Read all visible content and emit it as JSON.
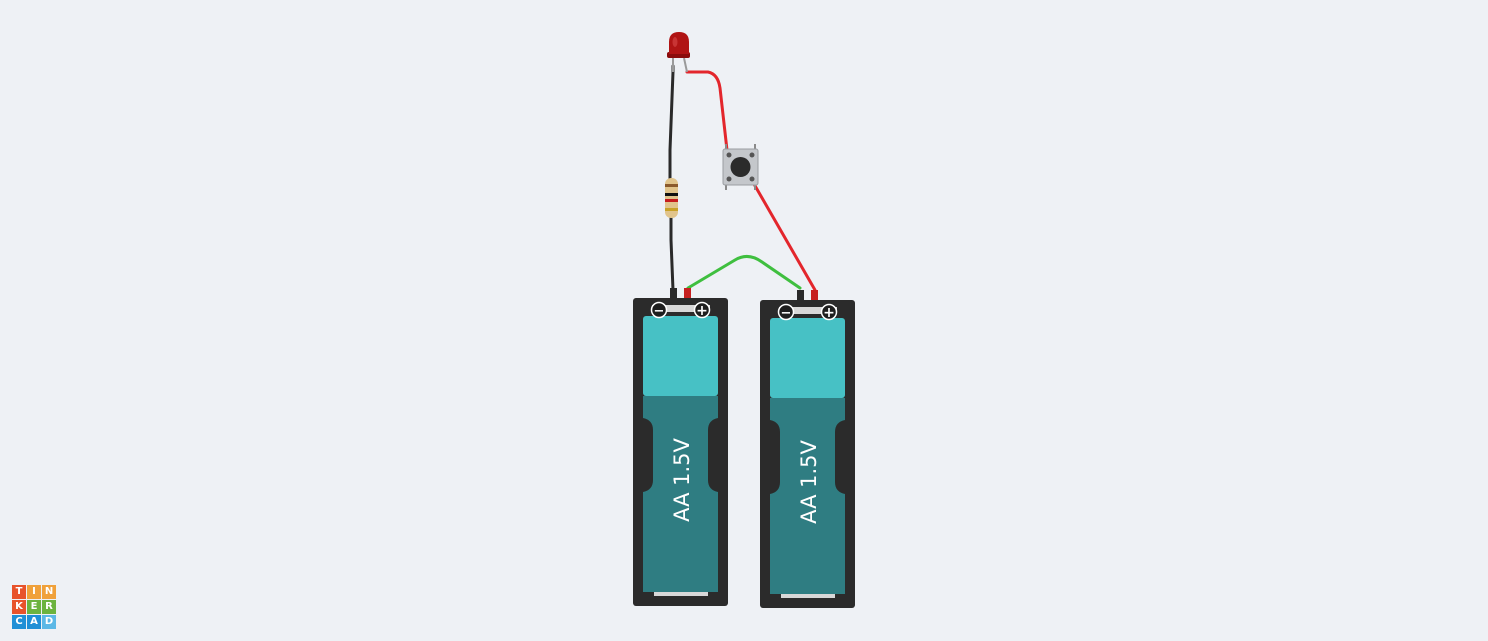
{
  "app": {
    "name": "TINKERCAD"
  },
  "logo": {
    "letters": [
      "T",
      "I",
      "N",
      "K",
      "E",
      "R",
      "C",
      "A",
      "D"
    ],
    "colors": [
      "#e8532b",
      "#f0a13a",
      "#f0a13a",
      "#e8532b",
      "#6cb33f",
      "#6cb33f",
      "#1f8fd6",
      "#1f8fd6",
      "#5cb8e6"
    ]
  },
  "circuit": {
    "batteries": [
      {
        "label": "AA 1.5V",
        "minus": "−",
        "plus": "+"
      },
      {
        "label": "AA 1.5V",
        "minus": "−",
        "plus": "+"
      }
    ],
    "components": [
      "red-led",
      "resistor",
      "pushbutton"
    ],
    "wire_colors": {
      "black": "#333333",
      "red": "#e3262c",
      "green": "#3fbf3f"
    },
    "battery_colors": {
      "holder": "#2b2b2b",
      "cell_top": "#47c1c5",
      "cell_body": "#2f7d82"
    }
  }
}
